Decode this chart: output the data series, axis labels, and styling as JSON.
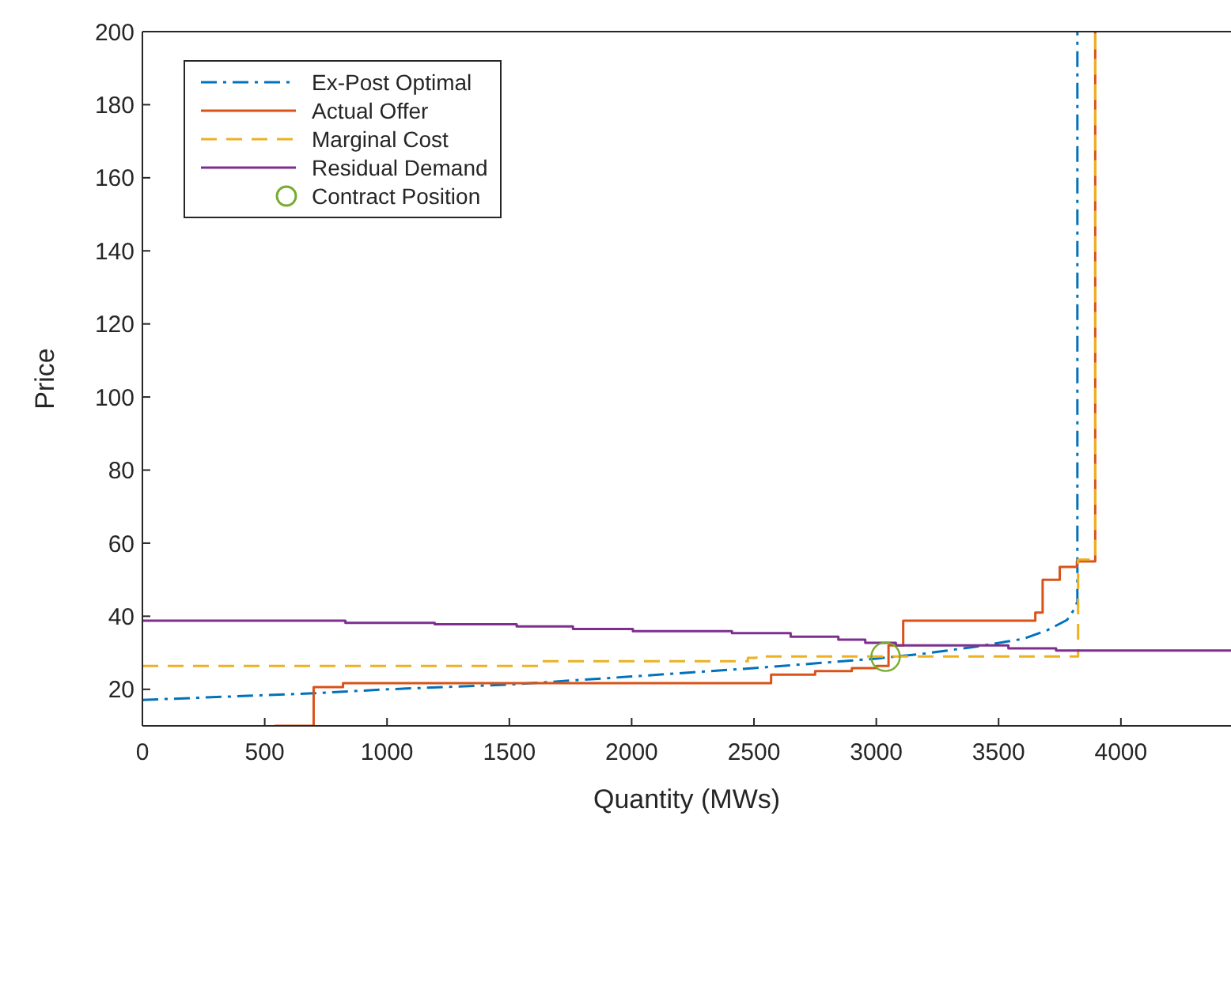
{
  "chart_data": {
    "type": "line",
    "xlabel": "Quantity (MWs)",
    "ylabel": "Price",
    "xlim": [
      0,
      4450
    ],
    "xticks": [
      0,
      500,
      1000,
      1500,
      2000,
      2500,
      3000,
      3500,
      4000
    ],
    "ylim": [
      10,
      200
    ],
    "yticks": [
      20,
      40,
      60,
      80,
      100,
      120,
      140,
      160,
      180,
      200
    ],
    "grid": false,
    "legend": "top left",
    "series": [
      {
        "name": "Ex-Post Optimal",
        "type": "line",
        "line_style": "dashdot",
        "color": "#0072bd",
        "x": [
          0,
          700,
          1000,
          1500,
          2000,
          2500,
          3000,
          3200,
          3400,
          3600,
          3700,
          3780,
          3810,
          3822,
          3822
        ],
        "values": [
          17.1,
          18.9,
          20,
          21.3,
          23.5,
          25.8,
          28.4,
          29.8,
          31.6,
          33.8,
          36.2,
          39,
          42,
          44,
          200
        ]
      },
      {
        "name": "Actual Offer",
        "type": "step",
        "line_style": "solid",
        "color": "#d95319",
        "x": [
          540,
          700,
          820,
          2570,
          2750,
          2900,
          3000,
          3050,
          3110,
          3650,
          3680,
          3750,
          3820,
          3895
        ],
        "values": [
          10,
          20.6,
          21.7,
          24,
          25,
          25.8,
          26.4,
          32,
          38.8,
          41,
          50,
          53.5,
          55,
          200
        ]
      },
      {
        "name": "Marginal Cost",
        "type": "step",
        "line_style": "dashed",
        "color": "#edb120",
        "x": [
          0,
          1635,
          2475,
          2510,
          3825,
          3895
        ],
        "values": [
          26.4,
          27.7,
          28.6,
          29,
          55.5,
          200
        ]
      },
      {
        "name": "Residual Demand",
        "type": "step",
        "line_style": "solid",
        "color": "#7e2f8e",
        "x": [
          0,
          830,
          1195,
          1530,
          1760,
          2005,
          2410,
          2650,
          2845,
          2955,
          3080,
          3540,
          3735,
          4450
        ],
        "values": [
          38.8,
          38.2,
          37.8,
          37.2,
          36.5,
          35.9,
          35.4,
          34.4,
          33.6,
          32.7,
          32,
          31.2,
          30.6,
          30.6
        ]
      },
      {
        "name": "Contract Position",
        "type": "scatter",
        "marker": "circle",
        "color": "#77ac30",
        "x": [
          3038
        ],
        "values": [
          28.9
        ]
      }
    ]
  }
}
